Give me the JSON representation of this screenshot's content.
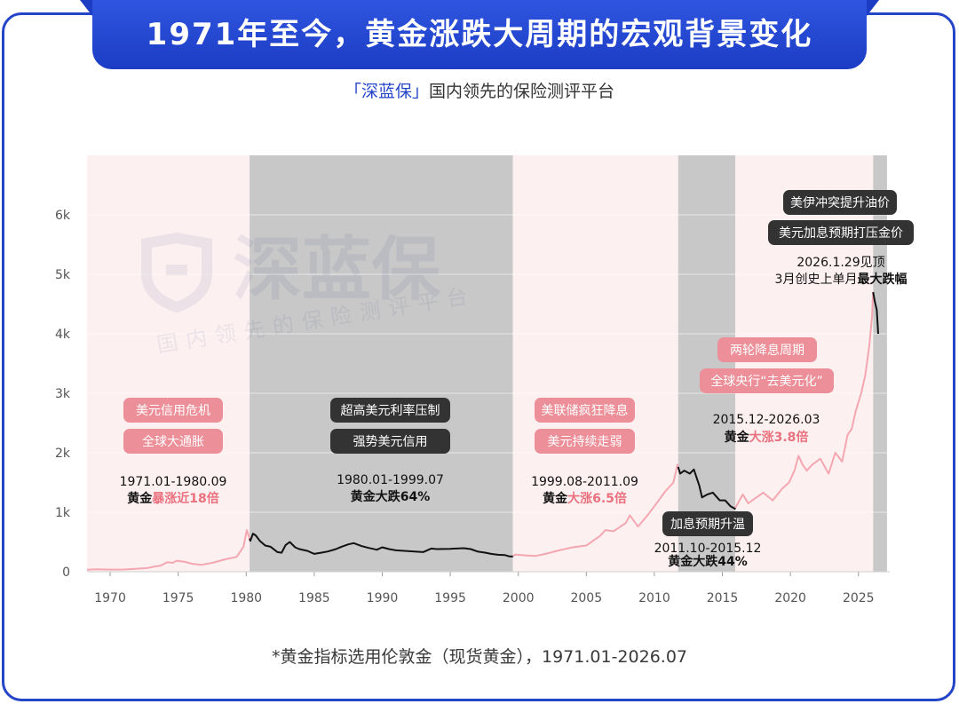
{
  "title": "1971年至今，黄金涨跌大周期的宏观背景变化",
  "subtitle": {
    "brand": "「深蓝保」",
    "text": "国内领先的保险测评平台"
  },
  "watermark": {
    "brand": "深蓝保",
    "tagline": "国内领先的保险测评平台"
  },
  "footnote": "*黄金指标选用伦敦金（现货黄金），1971.01-2026.07",
  "colors": {
    "accent": "#2545c9",
    "bull_band": "#fdf0f1",
    "bear_band": "#c8c8c8",
    "bull_line": "#f4a7b0",
    "bear_line": "#111111",
    "highlight": "#e9717e"
  },
  "chart_data": {
    "type": "line",
    "xlabel": "",
    "ylabel": "",
    "xlim": [
      1968.3,
      2027.3
    ],
    "ylim": [
      0,
      7000
    ],
    "x_ticks": [
      1970,
      1975,
      1980,
      1985,
      1990,
      1995,
      2000,
      2005,
      2010,
      2015,
      2020,
      2025
    ],
    "y_ticks": [
      0,
      1000,
      2000,
      3000,
      4000,
      5000,
      6000
    ],
    "y_tick_labels": [
      "0",
      "1k",
      "2k",
      "3k",
      "4k",
      "5k",
      "6k"
    ],
    "grid": true,
    "series": [
      {
        "values": [
          [
            1968.3,
            35
          ],
          [
            1969,
            41
          ],
          [
            1970,
            36
          ],
          [
            1971,
            38
          ],
          [
            1972,
            50
          ],
          [
            1972.8,
            64
          ],
          [
            1973.3,
            90
          ],
          [
            1973.7,
            100
          ],
          [
            1974.2,
            160
          ],
          [
            1974.6,
            150
          ],
          [
            1974.9,
            185
          ],
          [
            1975.5,
            165
          ],
          [
            1976,
            135
          ],
          [
            1976.7,
            115
          ],
          [
            1977.5,
            150
          ],
          [
            1978.5,
            210
          ],
          [
            1979.3,
            250
          ],
          [
            1979.8,
            420
          ],
          [
            1980.05,
            700
          ],
          [
            1980.3,
            520
          ],
          [
            1980.5,
            640
          ],
          [
            1980.7,
            610
          ],
          [
            1981,
            520
          ],
          [
            1981.4,
            440
          ],
          [
            1981.8,
            420
          ],
          [
            1982.3,
            330
          ],
          [
            1982.6,
            320
          ],
          [
            1982.9,
            450
          ],
          [
            1983.2,
            500
          ],
          [
            1983.6,
            410
          ],
          [
            1983.9,
            380
          ],
          [
            1984.5,
            350
          ],
          [
            1985,
            300
          ],
          [
            1985.5,
            320
          ],
          [
            1986,
            340
          ],
          [
            1986.6,
            380
          ],
          [
            1987,
            420
          ],
          [
            1987.5,
            460
          ],
          [
            1987.9,
            480
          ],
          [
            1988.5,
            430
          ],
          [
            1989,
            400
          ],
          [
            1989.6,
            370
          ],
          [
            1990,
            410
          ],
          [
            1990.5,
            380
          ],
          [
            1991,
            360
          ],
          [
            1992,
            345
          ],
          [
            1993,
            330
          ],
          [
            1993.6,
            390
          ],
          [
            1994,
            380
          ],
          [
            1995,
            385
          ],
          [
            1996,
            395
          ],
          [
            1996.5,
            380
          ],
          [
            1997,
            340
          ],
          [
            1997.6,
            320
          ],
          [
            1998,
            300
          ],
          [
            1998.5,
            285
          ],
          [
            1999,
            280
          ],
          [
            1999.3,
            260
          ],
          [
            1999.55,
            255
          ],
          [
            1999.8,
            290
          ],
          [
            2000.5,
            275
          ],
          [
            2001.3,
            265
          ],
          [
            2002,
            300
          ],
          [
            2003,
            360
          ],
          [
            2004,
            410
          ],
          [
            2005,
            440
          ],
          [
            2006,
            600
          ],
          [
            2006.4,
            700
          ],
          [
            2007,
            680
          ],
          [
            2007.9,
            820
          ],
          [
            2008.2,
            950
          ],
          [
            2008.8,
            760
          ],
          [
            2009.5,
            950
          ],
          [
            2010,
            1100
          ],
          [
            2010.8,
            1350
          ],
          [
            2011.4,
            1500
          ],
          [
            2011.7,
            1800
          ],
          [
            2011.9,
            1650
          ],
          [
            2012.2,
            1700
          ],
          [
            2012.6,
            1650
          ],
          [
            2012.9,
            1720
          ],
          [
            2013.3,
            1450
          ],
          [
            2013.5,
            1250
          ],
          [
            2013.9,
            1300
          ],
          [
            2014.3,
            1330
          ],
          [
            2014.8,
            1200
          ],
          [
            2015.2,
            1200
          ],
          [
            2015.6,
            1100
          ],
          [
            2015.92,
            1060
          ],
          [
            2016.5,
            1300
          ],
          [
            2016.9,
            1150
          ],
          [
            2017.5,
            1250
          ],
          [
            2018,
            1330
          ],
          [
            2018.7,
            1200
          ],
          [
            2019.4,
            1400
          ],
          [
            2019.9,
            1500
          ],
          [
            2020.3,
            1700
          ],
          [
            2020.6,
            1950
          ],
          [
            2020.9,
            1800
          ],
          [
            2021.2,
            1700
          ],
          [
            2021.6,
            1800
          ],
          [
            2022.2,
            1900
          ],
          [
            2022.8,
            1650
          ],
          [
            2023.3,
            2000
          ],
          [
            2023.8,
            1850
          ],
          [
            2024.2,
            2300
          ],
          [
            2024.5,
            2400
          ],
          [
            2024.8,
            2700
          ],
          [
            2025.2,
            3000
          ],
          [
            2025.5,
            3300
          ],
          [
            2025.8,
            3800
          ],
          [
            2026.0,
            4300
          ],
          [
            2026.08,
            4700
          ],
          [
            2026.2,
            4550
          ],
          [
            2026.35,
            4400
          ],
          [
            2026.45,
            4000
          ]
        ]
      }
    ],
    "periods": [
      {
        "type": "bull",
        "start": 1968.3,
        "end": 1980.25
      },
      {
        "type": "bear",
        "start": 1980.25,
        "end": 1999.6
      },
      {
        "type": "bull",
        "start": 1999.6,
        "end": 2011.75
      },
      {
        "type": "bear",
        "start": 2011.75,
        "end": 2015.95
      },
      {
        "type": "bull",
        "start": 2015.95,
        "end": 2026.08
      },
      {
        "type": "bear",
        "start": 2026.08,
        "end": 2027.1
      }
    ],
    "annotations": {
      "p1": {
        "tags": [
          "美元信用危机",
          "全球大通胀"
        ],
        "range": "1971.01-1980.09",
        "lead": "黄金",
        "highlight": "暴涨近18倍"
      },
      "p2": {
        "tags": [
          "超高美元利率压制",
          "强势美元信用"
        ],
        "range": "1980.01-1999.07",
        "lead": "黄金大跌64%"
      },
      "p3": {
        "tags": [
          "美联储疯狂降息",
          "美元持续走弱"
        ],
        "range": "1999.08-2011.09",
        "lead": "黄金",
        "highlight": "大涨6.5倍"
      },
      "p4": {
        "tag": "加息预期升温",
        "range": "2011.10-2015.12",
        "lead": "黄金大跌44%"
      },
      "p5": {
        "tags": [
          "两轮降息周期",
          "全球央行“去美元化”"
        ],
        "range": "2015.12-2026.03",
        "lead": "黄金",
        "highlight": "大涨3.8倍"
      },
      "p6": {
        "tags": [
          "美伊冲突提升油价",
          "美元加息预期打压金价"
        ],
        "line1": "2026.1.29见顶",
        "line2_lead": "3月创史上单月",
        "line2_bold": "最大跌幅"
      }
    }
  }
}
